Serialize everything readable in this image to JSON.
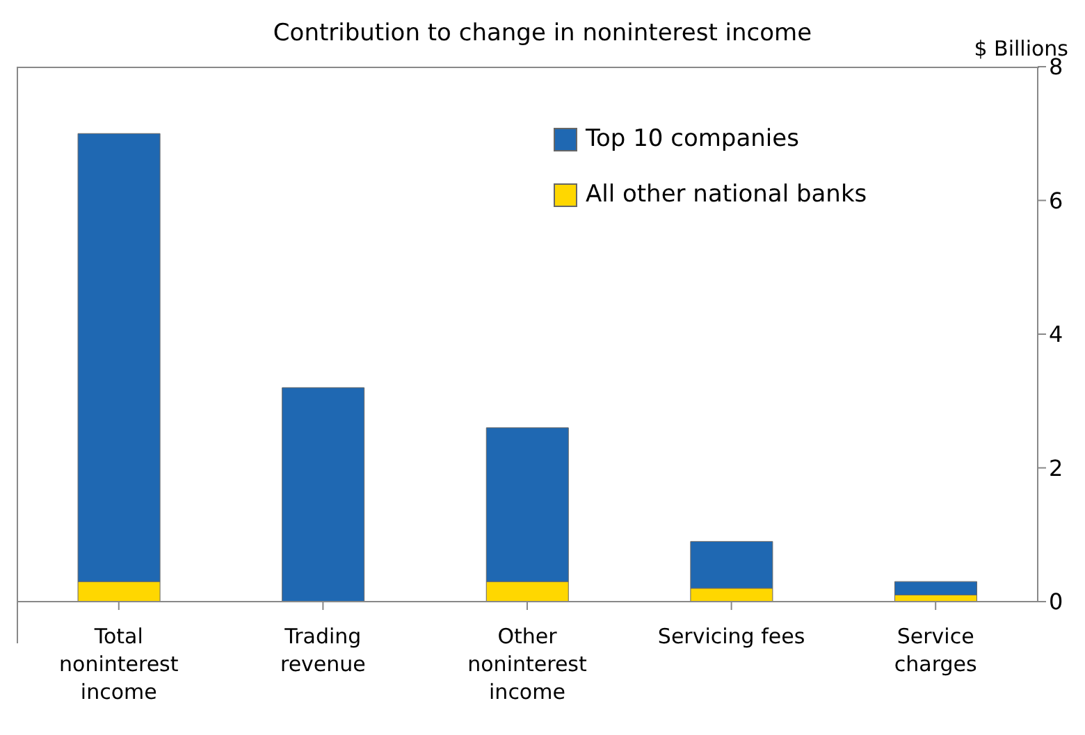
{
  "chart_data": {
    "type": "bar",
    "title": "Contribution to change in noninterest income",
    "ylabel": "$ Billions",
    "categories": [
      "Total noninterest income",
      "Trading revenue",
      "Other noninterest income",
      "Servicing fees",
      "Service charges"
    ],
    "stacked": true,
    "series": [
      {
        "name": "All other national banks",
        "color": "#ffd700",
        "values": [
          0.3,
          0,
          0.3,
          0.2,
          0.1
        ]
      },
      {
        "name": "Top 10 companies",
        "color": "#1f68b2",
        "values": [
          6.7,
          3.2,
          2.3,
          0.7,
          0.2
        ]
      }
    ],
    "ylim": [
      0,
      8
    ],
    "yticks": [
      0,
      2,
      4,
      6,
      8
    ],
    "legend": "top right"
  }
}
